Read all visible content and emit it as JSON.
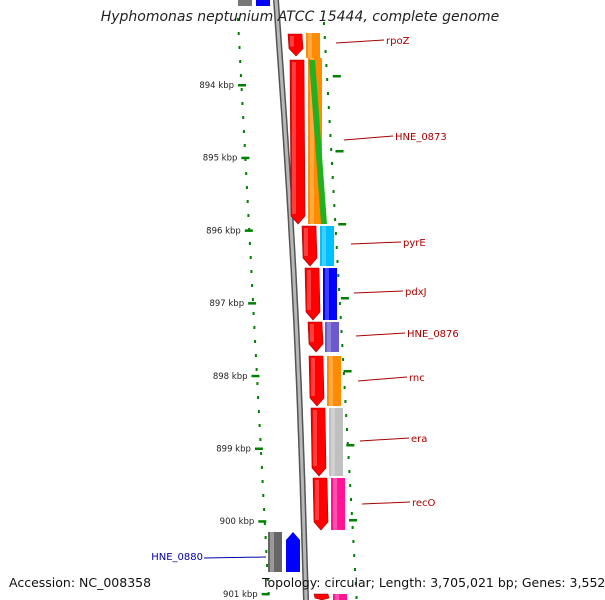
{
  "title": "Hyphomonas neptunium ATCC 15444, complete genome",
  "footer": {
    "accession": "Accession: NC_008358",
    "summary": "Topology: circular; Length: 3,705,021 bp; Genes: 3,552"
  },
  "ticks": [
    {
      "label": "894 kbp",
      "value": 894
    },
    {
      "label": "895 kbp",
      "value": 895
    },
    {
      "label": "896 kbp",
      "value": 896
    },
    {
      "label": "897 kbp",
      "value": 897
    },
    {
      "label": "898 kbp",
      "value": 898
    },
    {
      "label": "899 kbp",
      "value": 899
    },
    {
      "label": "900 kbp",
      "value": 900
    },
    {
      "label": "901 kbp",
      "value": 901
    }
  ],
  "genes": [
    {
      "label": "rpoZ",
      "color": "#ff8c00"
    },
    {
      "label": "HNE_0873",
      "color": "#ff8c00"
    },
    {
      "label": "pyrE",
      "color": "#00bfff"
    },
    {
      "label": "pdxJ",
      "color": "#0000ff"
    },
    {
      "label": "HNE_0876",
      "color": "#6a5acd"
    },
    {
      "label": "rnc",
      "color": "#ff8c00"
    },
    {
      "label": "era",
      "color": "#c0c0c0"
    },
    {
      "label": "recO",
      "color": "#ff1493"
    },
    {
      "label": "HNE_0880",
      "color": "#0000ff"
    }
  ],
  "colors": {
    "backbone": "#808080",
    "cds": "#ff0000",
    "gc_skew": "#008000",
    "label": "#aa0000",
    "reverse_label": "#0000aa"
  }
}
